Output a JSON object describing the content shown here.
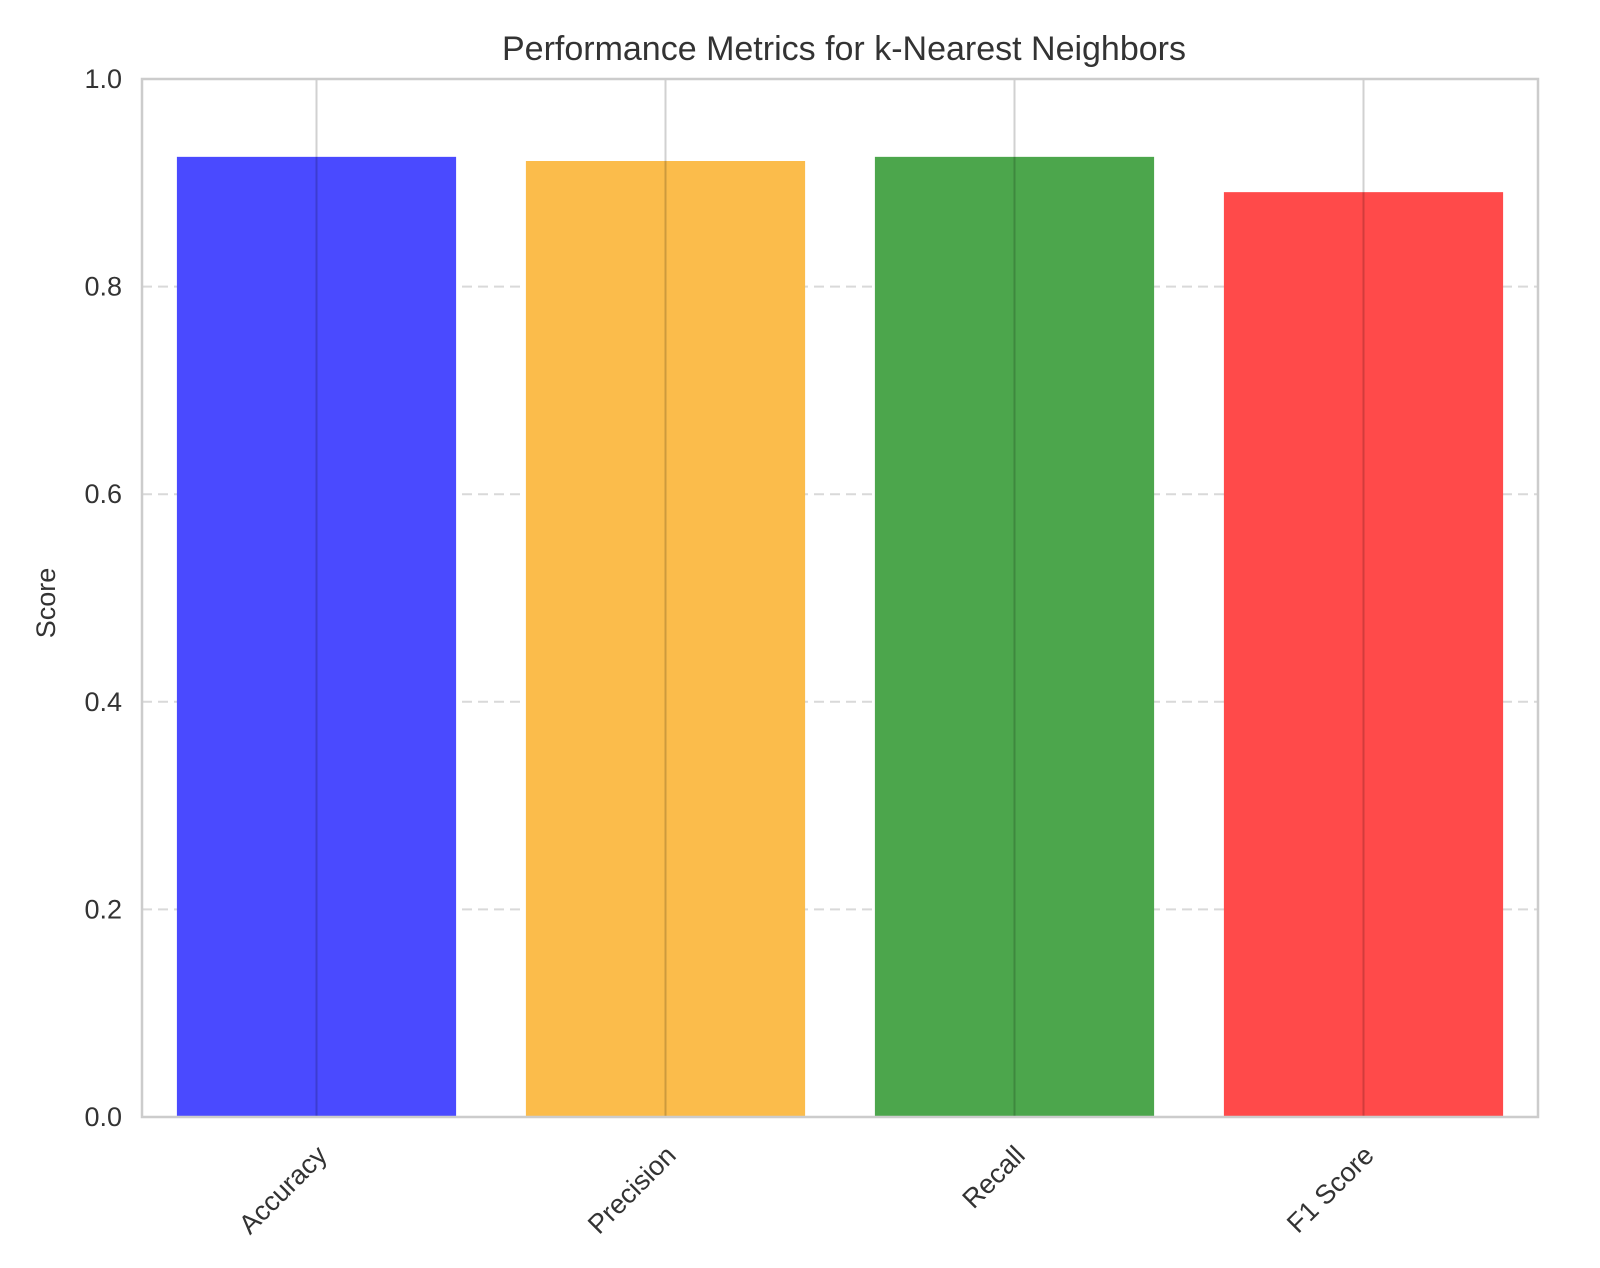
{
  "chart_data": {
    "type": "bar",
    "title": "Performance Metrics for k-Nearest Neighbors",
    "xlabel": "",
    "ylabel": "Score",
    "categories": [
      "Accuracy",
      "Precision",
      "Recall",
      "F1 Score"
    ],
    "values": [
      0.925,
      0.921,
      0.925,
      0.891
    ],
    "colors": [
      "#4a4aff",
      "#fbbc4b",
      "#4ca64c",
      "#ff4a4a"
    ],
    "ylim": [
      0,
      1.0
    ],
    "yticks": [
      "0.0",
      "0.2",
      "0.4",
      "0.6",
      "0.8",
      "1.0"
    ],
    "grid": {
      "y": "dashed",
      "x": "solid"
    },
    "x_tick_rotation": 45
  }
}
